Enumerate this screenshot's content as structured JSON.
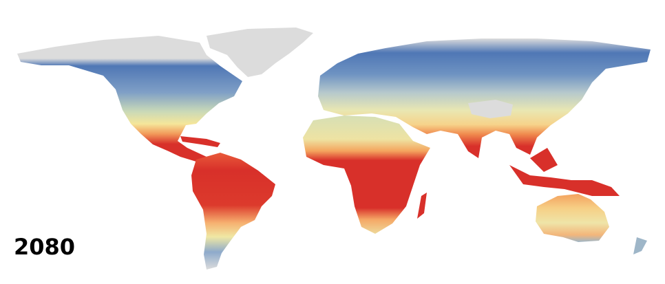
{
  "label": "2080"
}
